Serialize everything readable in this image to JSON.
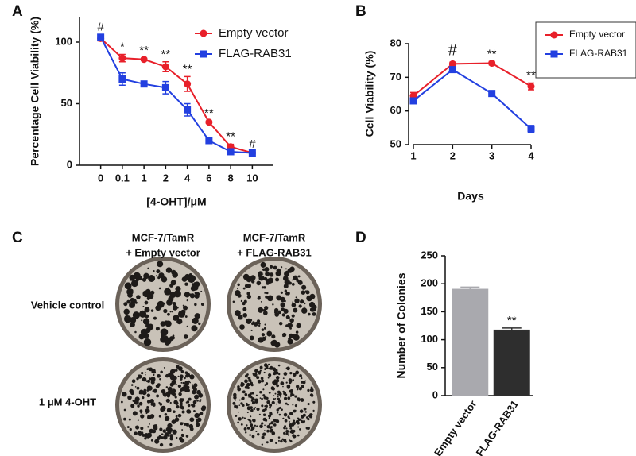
{
  "chart_data": [
    {
      "type": "line",
      "panel": "A",
      "y_label": "Percentage Cell Viability (%)",
      "x_label": "[4-OHT]/μM",
      "categories": [
        "0",
        "0.1",
        "1",
        "2",
        "4",
        "6",
        "8",
        "10"
      ],
      "series": [
        {
          "name": "Empty vector",
          "color": "#e8202a",
          "marker": "circle",
          "values": [
            103,
            87,
            86,
            80,
            66,
            35,
            15,
            10
          ],
          "errors": [
            2,
            3,
            1,
            4,
            6,
            1,
            2,
            1
          ]
        },
        {
          "name": "FLAG-RAB31",
          "color": "#2340e0",
          "marker": "square",
          "values": [
            104,
            70,
            66,
            63,
            45,
            20,
            11,
            10
          ],
          "errors": [
            2,
            5,
            2,
            5,
            5,
            2,
            1,
            1
          ]
        }
      ],
      "annotations": [
        "#",
        "*",
        "**",
        "**",
        "**",
        "**",
        "**",
        "#"
      ],
      "ylim": [
        0,
        120
      ],
      "yticks": [
        0,
        50,
        100
      ],
      "legend": "upper right",
      "legend_frame": false
    },
    {
      "type": "line",
      "panel": "B",
      "y_label": "Cell Viability (%)",
      "x_label": "Days",
      "x": [
        1,
        2,
        3,
        4
      ],
      "series": [
        {
          "name": "Empty vector",
          "color": "#e8202a",
          "marker": "circle",
          "values": [
            64.5,
            74,
            74.2,
            67.3
          ],
          "errors": [
            1,
            0.5,
            0.5,
            1
          ]
        },
        {
          "name": "FLAG-RAB31",
          "color": "#2340e0",
          "marker": "square",
          "values": [
            63,
            72.3,
            65.2,
            54.7
          ],
          "errors": [
            0.5,
            0.5,
            0.8,
            1
          ]
        }
      ],
      "annotations": [
        null,
        "#",
        "**",
        "**"
      ],
      "xlim": [
        1,
        4
      ],
      "xticks": [
        1,
        2,
        3,
        4
      ],
      "ylim": [
        50,
        80
      ],
      "yticks": [
        50,
        60,
        70,
        80
      ],
      "legend": "outside right",
      "legend_frame": true
    },
    {
      "type": "bar",
      "panel": "D",
      "y_label": "Number of Colonies",
      "categories": [
        "Empty vector",
        "FLAG-RAB31"
      ],
      "values": [
        191,
        118
      ],
      "errors": [
        3,
        3
      ],
      "colors": [
        "#a9a9ae",
        "#2e2e2e"
      ],
      "annotations": [
        null,
        "**"
      ],
      "ylim": [
        0,
        250
      ],
      "yticks": [
        0,
        50,
        100,
        150,
        200,
        250
      ]
    }
  ],
  "panel_c": {
    "panel": "C",
    "columns": [
      [
        "MCF-7/TamR",
        "+ Empty vector"
      ],
      [
        "MCF-7/TamR",
        "+ FLAG-RAB31"
      ]
    ],
    "rows": [
      "Vehicle control",
      "1 μM 4-OHT"
    ]
  }
}
